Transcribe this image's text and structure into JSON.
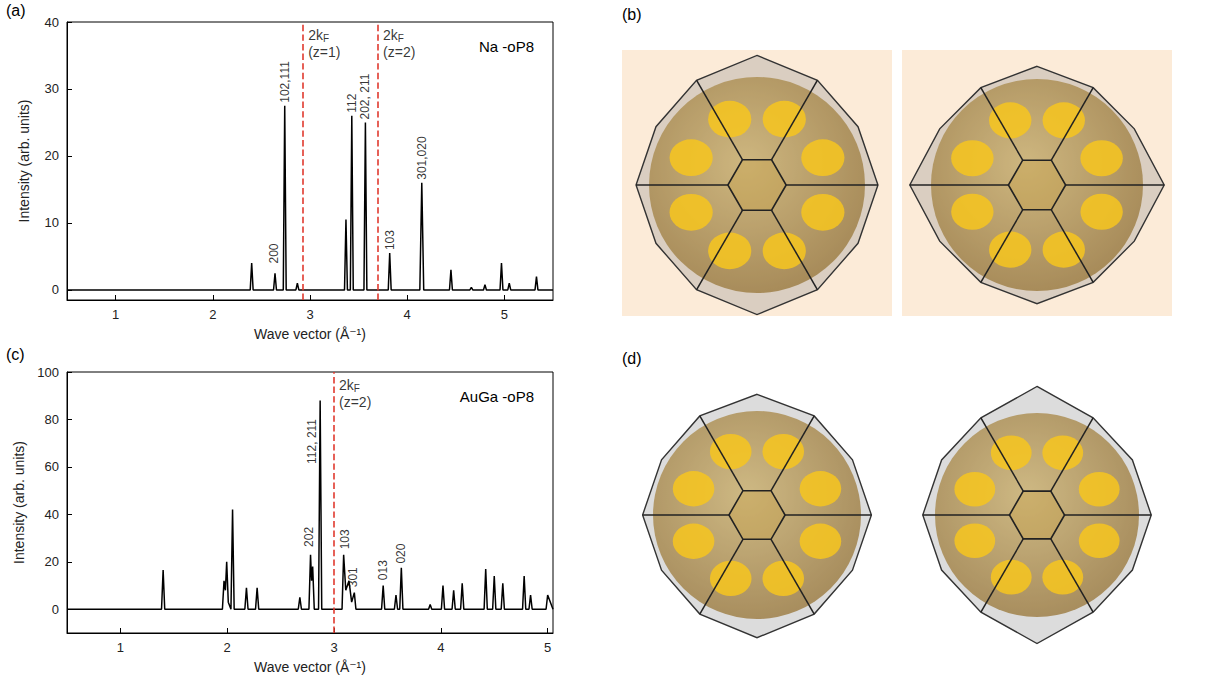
{
  "chart_data": [
    {
      "label": "(a)",
      "type": "line",
      "title": "Na -oP8",
      "x_label": "Wave vector (Å⁻¹)",
      "y_label": "Intensity (arb. units)",
      "xlim": [
        0.5,
        5.5
      ],
      "xticks": [
        1,
        2,
        3,
        4,
        5
      ],
      "ylim": [
        -1.5,
        40
      ],
      "yticks": [
        0,
        10,
        20,
        30,
        40
      ],
      "color": "#000000",
      "x": [
        0.5,
        2.385,
        2.4,
        2.415,
        2.625,
        2.64,
        2.655,
        2.725,
        2.74,
        2.755,
        2.855,
        2.87,
        2.885,
        3.355,
        3.37,
        3.385,
        3.415,
        3.43,
        3.445,
        3.555,
        3.57,
        3.585,
        3.805,
        3.82,
        3.835,
        4.13,
        4.15,
        4.17,
        4.435,
        4.45,
        4.465,
        4.645,
        4.66,
        4.675,
        4.785,
        4.8,
        4.815,
        4.955,
        4.97,
        4.985,
        5.035,
        5.05,
        5.065,
        5.315,
        5.33,
        5.345,
        5.5
      ],
      "values": [
        0,
        0,
        4,
        0,
        0,
        2.5,
        0,
        0,
        27.5,
        0,
        0,
        1,
        0,
        0,
        10.5,
        0,
        0,
        26,
        0,
        0,
        25,
        0,
        0,
        5.5,
        0,
        0,
        16,
        0,
        0,
        3,
        0,
        0,
        0.4,
        0,
        0,
        0.8,
        0,
        0,
        4,
        0,
        0,
        1,
        0,
        0,
        2,
        0,
        0
      ],
      "peak_labels": [
        {
          "x": 2.63,
          "y": 3.5,
          "label": "200"
        },
        {
          "x": 2.74,
          "y": 27.5,
          "label": "102,111"
        },
        {
          "x": 3.43,
          "y": 26,
          "label": "112"
        },
        {
          "x": 3.57,
          "y": 25,
          "label": "202, 211"
        },
        {
          "x": 3.82,
          "y": 5.5,
          "label": "103"
        },
        {
          "x": 4.15,
          "y": 16,
          "label": "301,020"
        }
      ],
      "fermi_lines": [
        {
          "x": 2.93,
          "label": "2k",
          "subscript": "F",
          "note": "(z=1)",
          "color": "#e03a2f",
          "line_style": "dashed"
        },
        {
          "x": 3.7,
          "label": "2k",
          "subscript": "F",
          "note": "(z=2)",
          "color": "#e03a2f",
          "line_style": "dashed"
        }
      ]
    },
    {
      "label": "(c)",
      "type": "line",
      "title": "AuGa -oP8",
      "x_label": "Wave vector (Å⁻¹)",
      "y_label": "Intensity (arb. units)",
      "xlim": [
        0.5,
        5.05
      ],
      "xticks": [
        1,
        2,
        3,
        4,
        5
      ],
      "ylim": [
        -10,
        100
      ],
      "yticks": [
        0,
        20,
        40,
        60,
        80,
        100
      ],
      "color": "#000000",
      "x": [
        0.5,
        1.385,
        1.4,
        1.415,
        1.955,
        1.97,
        1.983,
        1.995,
        2.01,
        2.035,
        2.05,
        2.065,
        2.165,
        2.18,
        2.195,
        2.265,
        2.28,
        2.295,
        2.665,
        2.68,
        2.695,
        2.765,
        2.78,
        2.79,
        2.8,
        2.815,
        2.855,
        2.87,
        2.885,
        3.075,
        3.09,
        3.11,
        3.14,
        3.165,
        3.19,
        3.205,
        3.445,
        3.46,
        3.475,
        3.565,
        3.58,
        3.595,
        3.615,
        3.63,
        3.645,
        3.885,
        3.9,
        3.915,
        4.005,
        4.02,
        4.035,
        4.105,
        4.12,
        4.135,
        4.185,
        4.2,
        4.215,
        4.405,
        4.42,
        4.435,
        4.485,
        4.5,
        4.515,
        4.565,
        4.58,
        4.595,
        4.765,
        4.78,
        4.795,
        4.825,
        4.84,
        4.855,
        4.985,
        5.0,
        5.05
      ],
      "values": [
        0,
        0,
        16.5,
        0,
        0,
        12,
        8,
        20,
        3,
        0,
        42,
        0,
        0,
        9,
        0,
        0,
        9,
        0,
        0,
        5,
        0,
        0,
        23,
        12,
        18,
        0,
        0,
        88,
        0,
        0,
        23,
        8,
        12,
        3,
        7,
        0,
        0,
        10,
        0,
        0,
        6,
        0,
        0,
        17.5,
        0,
        0,
        2,
        0,
        0,
        10,
        0,
        0,
        8,
        0,
        0,
        11,
        0,
        0,
        17,
        0,
        0,
        14,
        0,
        0,
        11,
        0,
        0,
        14,
        0,
        0,
        6,
        0,
        0,
        6,
        0
      ],
      "peak_labels": [
        {
          "x": 2.77,
          "y": 25,
          "label": "202"
        },
        {
          "x": 2.79,
          "y": 60,
          "label": "112, 211"
        },
        {
          "x": 3.1,
          "y": 24,
          "label": "103"
        },
        {
          "x": 3.18,
          "y": 8,
          "label": "301"
        },
        {
          "x": 3.46,
          "y": 11,
          "label": "013"
        },
        {
          "x": 3.63,
          "y": 18,
          "label": "020"
        }
      ],
      "fermi_lines": [
        {
          "x": 3.0,
          "label": "2k",
          "subscript": "F",
          "note": "(z=2)",
          "color": "#e03a2f",
          "line_style": "dashed"
        }
      ]
    }
  ],
  "figures": [
    {
      "label": "(b)"
    },
    {
      "label": "(d)"
    }
  ]
}
